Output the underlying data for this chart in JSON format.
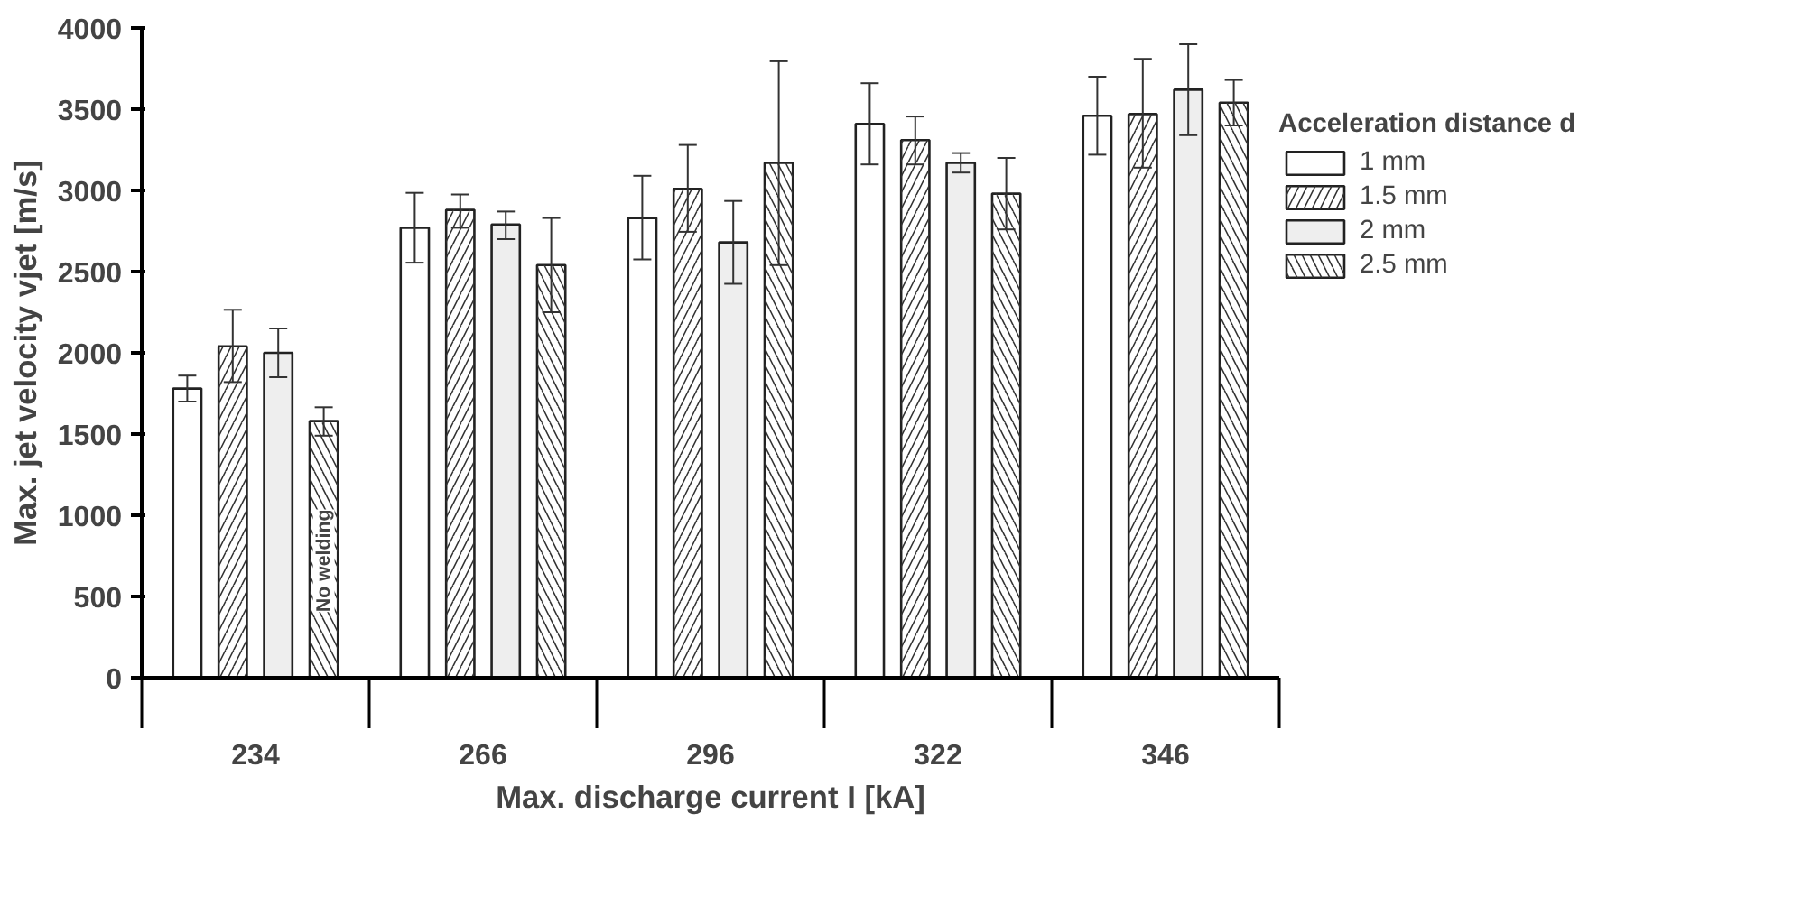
{
  "chart_data": {
    "type": "bar",
    "xlabel": "Max. discharge current I [kA]",
    "ylabel": "Max. jet velocity vjet [m/s]",
    "legend_title": "Acceleration distance d",
    "categories": [
      "234",
      "266",
      "296",
      "322",
      "346"
    ],
    "ylim": [
      0,
      4000
    ],
    "yticks": [
      0,
      500,
      1000,
      1500,
      2000,
      2500,
      3000,
      3500,
      4000
    ],
    "legend": "right",
    "grid": false,
    "annotations": [
      "No welding"
    ],
    "series": [
      {
        "name": "1 mm",
        "color": "#ffffff",
        "values": [
          1780,
          2770,
          2830,
          3410,
          3460
        ],
        "errors": [
          [
            1700,
            1860
          ],
          [
            2555,
            2985
          ],
          [
            2575,
            3090
          ],
          [
            3160,
            3660
          ],
          [
            3220,
            3700
          ]
        ]
      },
      {
        "name": "1.5 mm",
        "color": "#ffffff",
        "values": [
          2040,
          2880,
          3010,
          3310,
          3470
        ],
        "errors": [
          [
            1820,
            2265
          ],
          [
            2770,
            2975
          ],
          [
            2745,
            3280
          ],
          [
            3160,
            3455
          ],
          [
            3140,
            3810
          ]
        ]
      },
      {
        "name": "2 mm",
        "color": "#eeeeee",
        "values": [
          2000,
          2790,
          2680,
          3170,
          3620
        ],
        "errors": [
          [
            1850,
            2150
          ],
          [
            2700,
            2870
          ],
          [
            2425,
            2935
          ],
          [
            3110,
            3230
          ],
          [
            3340,
            3900
          ]
        ]
      },
      {
        "name": "2.5 mm",
        "color": "#ffffff",
        "values": [
          1580,
          2540,
          3170,
          2980,
          3540
        ],
        "errors": [
          [
            1490,
            1665
          ],
          [
            2250,
            2830
          ],
          [
            2540,
            3795
          ],
          [
            2760,
            3200
          ],
          [
            3400,
            3680
          ]
        ]
      }
    ]
  }
}
